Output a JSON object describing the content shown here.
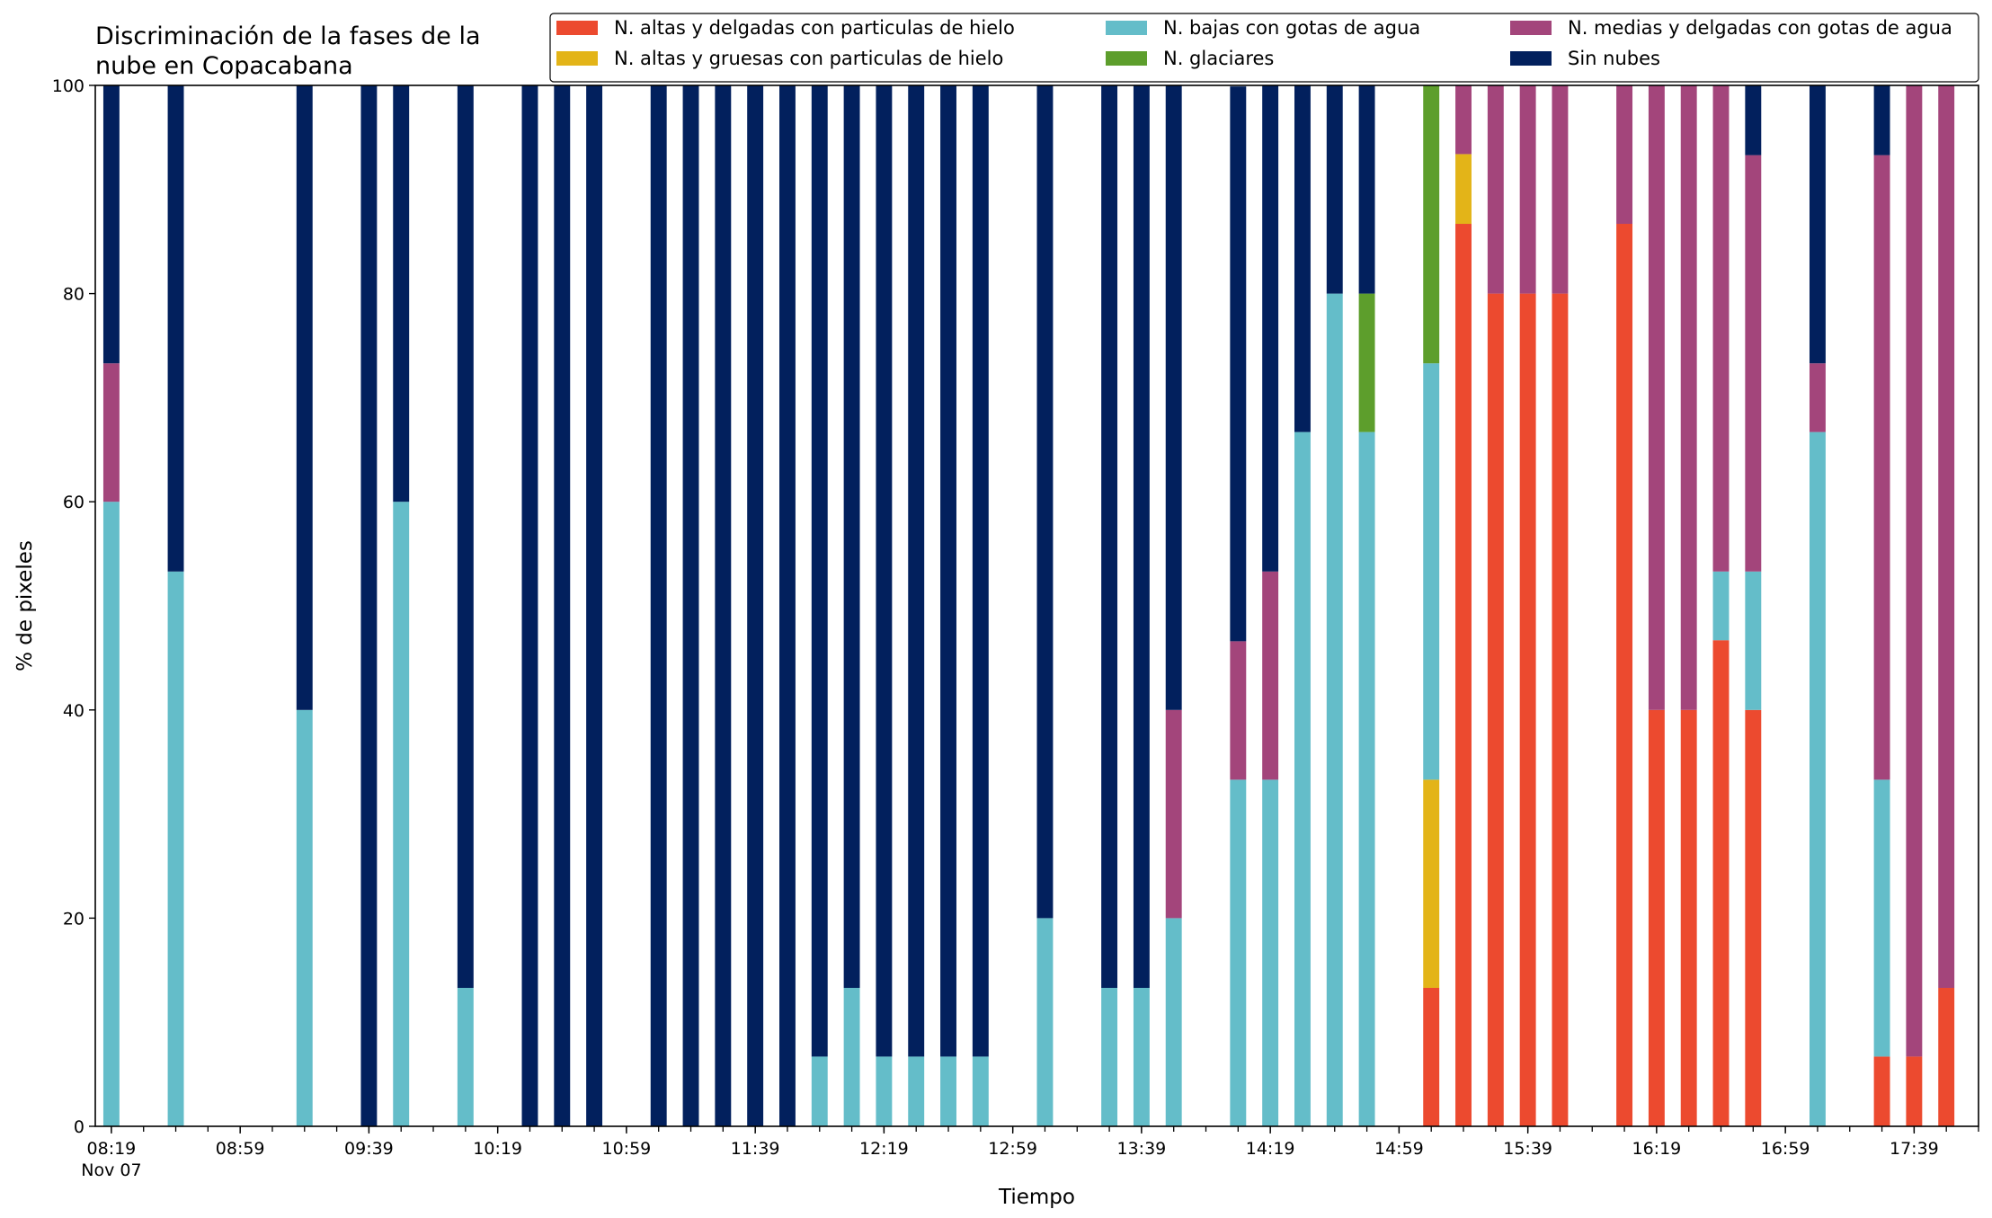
{
  "chart_data": {
    "type": "bar",
    "stacked": true,
    "title": "Discriminación de la fases de la\nnube en Copacabana",
    "xlabel": "Tiempo",
    "ylabel": "% de pixeles",
    "ylim": [
      0,
      100
    ],
    "yticks": [
      0,
      20,
      40,
      60,
      80,
      100
    ],
    "xlim": [
      "08:14",
      "17:59"
    ],
    "x_major_ticks": [
      "08:19",
      "08:59",
      "09:39",
      "10:19",
      "10:59",
      "11:39",
      "12:19",
      "12:59",
      "13:39",
      "14:19",
      "14:59",
      "15:39",
      "16:19",
      "16:59",
      "17:39"
    ],
    "x_date_label": "Nov 07",
    "tick_step_minutes": 10,
    "bar_width_minutes": 5,
    "grid": false,
    "legend_position": "top-right",
    "legend_columns": 3,
    "series": [
      {
        "key": "altas_delgadas",
        "name": "N. altas y delgadas con particulas de hielo",
        "color": "#ec4a2f"
      },
      {
        "key": "altas_gruesas",
        "name": "N. altas y gruesas con particulas de hielo",
        "color": "#e3b418"
      },
      {
        "key": "bajas_agua",
        "name": "N. bajas con gotas de agua",
        "color": "#64bdc9"
      },
      {
        "key": "glaciares",
        "name": "N. glaciares",
        "color": "#5d9e2c"
      },
      {
        "key": "medias_agua",
        "name": "N. medias y delgadas con gotas de agua",
        "color": "#a3457b"
      },
      {
        "key": "sin_nubes",
        "name": "Sin nubes",
        "color": "#02205d"
      }
    ],
    "legend_order": [
      "altas_delgadas",
      "altas_gruesas",
      "bajas_agua",
      "glaciares",
      "medias_agua",
      "sin_nubes"
    ],
    "bars": [
      {
        "time": "08:19",
        "values": [
          0,
          0,
          60,
          0,
          13.3,
          26.7
        ]
      },
      {
        "time": "08:39",
        "values": [
          0,
          0,
          53.3,
          0,
          0,
          46.7
        ]
      },
      {
        "time": "09:19",
        "values": [
          0,
          0,
          40,
          0,
          0,
          60
        ]
      },
      {
        "time": "09:39",
        "values": [
          0,
          0,
          0,
          0,
          0,
          100
        ]
      },
      {
        "time": "09:49",
        "values": [
          0,
          0,
          60,
          0,
          0,
          40
        ]
      },
      {
        "time": "10:09",
        "values": [
          0,
          0,
          13.3,
          0,
          0,
          86.7
        ]
      },
      {
        "time": "10:29",
        "values": [
          0,
          0,
          0,
          0,
          0,
          100
        ]
      },
      {
        "time": "10:39",
        "values": [
          0,
          0,
          0,
          0,
          0,
          100
        ]
      },
      {
        "time": "10:49",
        "values": [
          0,
          0,
          0,
          0,
          0,
          100
        ]
      },
      {
        "time": "11:09",
        "values": [
          0,
          0,
          0,
          0,
          0,
          100
        ]
      },
      {
        "time": "11:19",
        "values": [
          0,
          0,
          0,
          0,
          0,
          100
        ]
      },
      {
        "time": "11:29",
        "values": [
          0,
          0,
          0,
          0,
          0,
          100
        ]
      },
      {
        "time": "11:39",
        "values": [
          0,
          0,
          0,
          0,
          0,
          100
        ]
      },
      {
        "time": "11:49",
        "values": [
          0,
          0,
          0,
          0,
          0,
          100
        ]
      },
      {
        "time": "11:59",
        "values": [
          0,
          0,
          6.7,
          0,
          0,
          93.3
        ]
      },
      {
        "time": "12:09",
        "values": [
          0,
          0,
          13.3,
          0,
          0,
          86.7
        ]
      },
      {
        "time": "12:19",
        "values": [
          0,
          0,
          6.7,
          0,
          0,
          93.3
        ]
      },
      {
        "time": "12:29",
        "values": [
          0,
          0,
          6.7,
          0,
          0,
          93.3
        ]
      },
      {
        "time": "12:39",
        "values": [
          0,
          0,
          6.7,
          0,
          0,
          93.3
        ]
      },
      {
        "time": "12:49",
        "values": [
          0,
          0,
          6.7,
          0,
          0,
          93.3
        ]
      },
      {
        "time": "13:09",
        "values": [
          0,
          0,
          20,
          0,
          0,
          80
        ]
      },
      {
        "time": "13:29",
        "values": [
          0,
          0,
          13.3,
          0,
          0,
          86.7
        ]
      },
      {
        "time": "13:39",
        "values": [
          0,
          0,
          13.3,
          0,
          0,
          86.7
        ]
      },
      {
        "time": "13:49",
        "values": [
          0,
          0,
          20,
          0,
          20,
          60
        ]
      },
      {
        "time": "14:09",
        "values": [
          0,
          0,
          33.3,
          0,
          13.3,
          53.3
        ]
      },
      {
        "time": "14:19",
        "values": [
          0,
          0,
          33.3,
          0,
          20,
          46.7
        ]
      },
      {
        "time": "14:29",
        "values": [
          0,
          0,
          66.7,
          0,
          0,
          33.3
        ]
      },
      {
        "time": "14:39",
        "values": [
          0,
          0,
          80,
          0,
          0,
          20
        ]
      },
      {
        "time": "14:49",
        "values": [
          0,
          0,
          66.7,
          13.3,
          0,
          20
        ]
      },
      {
        "time": "15:09",
        "values": [
          13.3,
          20,
          40,
          26.7,
          0,
          0
        ]
      },
      {
        "time": "15:19",
        "values": [
          86.7,
          6.7,
          0,
          0,
          6.6,
          0
        ]
      },
      {
        "time": "15:29",
        "values": [
          80,
          0,
          0,
          0,
          20,
          0
        ]
      },
      {
        "time": "15:39",
        "values": [
          80,
          0,
          0,
          0,
          20,
          0
        ]
      },
      {
        "time": "15:49",
        "values": [
          80,
          0,
          0,
          0,
          20,
          0
        ]
      },
      {
        "time": "16:09",
        "values": [
          86.7,
          0,
          0,
          0,
          13.3,
          0
        ]
      },
      {
        "time": "16:19",
        "values": [
          40,
          0,
          0,
          0,
          60,
          0
        ]
      },
      {
        "time": "16:29",
        "values": [
          40,
          0,
          0,
          0,
          60,
          0
        ]
      },
      {
        "time": "16:39",
        "values": [
          46.7,
          0,
          6.6,
          0,
          46.7,
          0
        ]
      },
      {
        "time": "16:49",
        "values": [
          40,
          0,
          13.3,
          0,
          40,
          6.7
        ]
      },
      {
        "time": "17:09",
        "values": [
          0,
          0,
          66.7,
          0,
          6.6,
          26.7
        ]
      },
      {
        "time": "17:29",
        "values": [
          6.7,
          0,
          26.6,
          0,
          60,
          6.7
        ]
      },
      {
        "time": "17:39",
        "values": [
          6.7,
          0,
          0,
          0,
          93.3,
          0
        ]
      },
      {
        "time": "17:49",
        "values": [
          13.3,
          0,
          0,
          0,
          86.7,
          0
        ]
      }
    ]
  }
}
